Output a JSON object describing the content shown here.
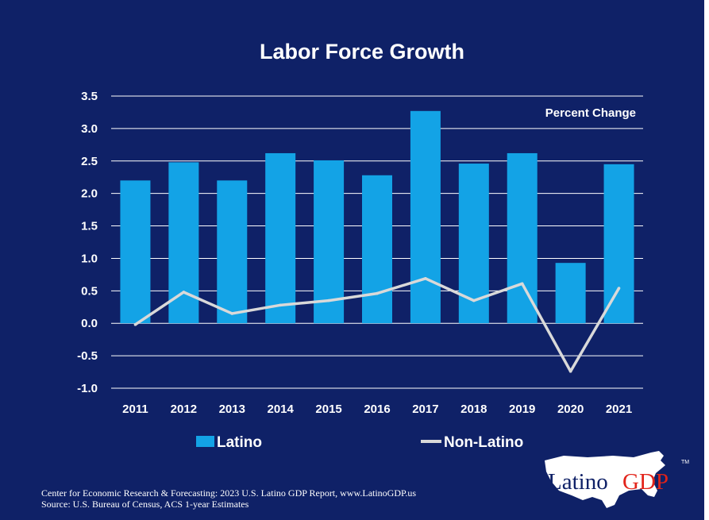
{
  "colors": {
    "background": "#0f2167",
    "latino_bar": "#13a3e6",
    "non_latino_line": "#d9d9d9",
    "gridline": "#ffffff",
    "logo_accent": "#e2231a"
  },
  "chart_data": {
    "type": "bar",
    "title": "Labor Force Growth",
    "annotation": "Percent Change",
    "categories": [
      "2011",
      "2012",
      "2013",
      "2014",
      "2015",
      "2016",
      "2017",
      "2018",
      "2019",
      "2020",
      "2021"
    ],
    "series": [
      {
        "name": "Latino",
        "type": "bar",
        "values": [
          2.2,
          2.48,
          2.2,
          2.62,
          2.51,
          2.28,
          3.27,
          2.46,
          2.62,
          0.93,
          2.45
        ]
      },
      {
        "name": "Non-Latino",
        "type": "line",
        "values": [
          -0.02,
          0.48,
          0.15,
          0.28,
          0.35,
          0.46,
          0.69,
          0.35,
          0.61,
          -0.74,
          0.54
        ]
      }
    ],
    "ylim": [
      -1.0,
      3.5
    ],
    "yticks": [
      "3.5",
      "3.0",
      "2.5",
      "2.0",
      "1.5",
      "1.0",
      "0.5",
      "0.0",
      "-0.5",
      "-1.0"
    ],
    "grid": true,
    "legend_position": "bottom"
  },
  "source": {
    "line1": "Center for Economic Research & Forecasting: 2023 U.S. Latino GDP Report, www.LatinoGDP.us",
    "line2": "Source: U.S. Bureau of Census, ACS 1-year Estimates"
  },
  "logo": {
    "part1": "Latino",
    "part2": "GDP",
    "trademark": "TM",
    "icon": "us-map-icon"
  }
}
